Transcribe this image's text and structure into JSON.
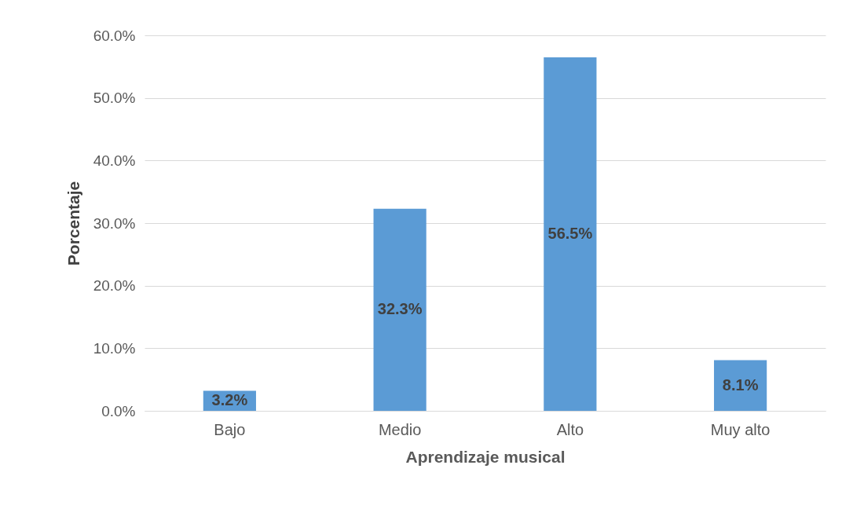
{
  "chart_data": {
    "type": "bar",
    "xlabel": "Aprendizaje musical",
    "ylabel": "Porcentaje",
    "categories": [
      "Bajo",
      "Medio",
      "Alto",
      "Muy alto"
    ],
    "values": [
      3.2,
      32.3,
      56.5,
      8.1
    ],
    "value_labels": [
      "3.2%",
      "32.3%",
      "56.5%",
      "8.1%"
    ],
    "color": "#5b9bd5",
    "ylim": [
      0,
      60
    ],
    "yticks": [
      {
        "value": 0,
        "label": "0.0%"
      },
      {
        "value": 10,
        "label": "10.0%"
      },
      {
        "value": 20,
        "label": "20.0%"
      },
      {
        "value": 30,
        "label": "30.0%"
      },
      {
        "value": 40,
        "label": "40.0%"
      },
      {
        "value": 50,
        "label": "50.0%"
      },
      {
        "value": 60,
        "label": "60.0%"
      }
    ],
    "grid": "y"
  }
}
